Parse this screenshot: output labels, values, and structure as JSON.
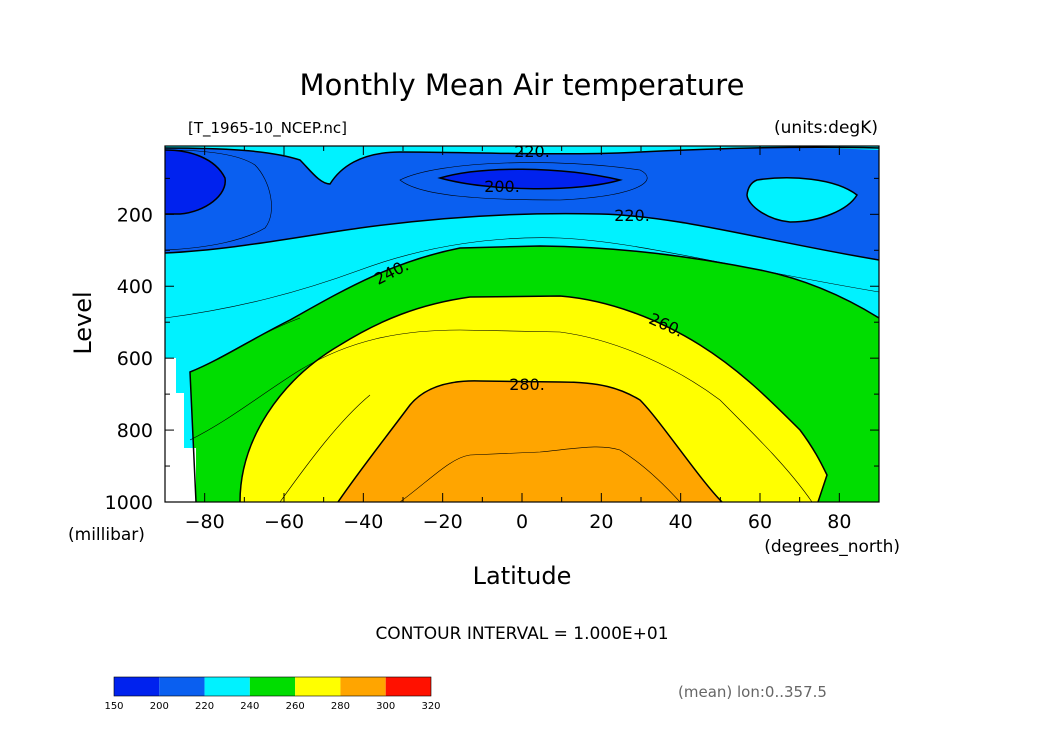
{
  "chart_data": {
    "type": "heatmap",
    "subtype": "filled-contour",
    "title": "Monthly Mean Air temperature",
    "file_label": "[T_1965-10_NCEP.nc]",
    "units_label": "(units:degK)",
    "xlabel": "Latitude",
    "x_units": "(degrees_north)",
    "ylabel": "Level",
    "y_units": "(millibar)",
    "xlim": [
      -90,
      90
    ],
    "ylim": [
      1000,
      10
    ],
    "x_ticks": [
      -80,
      -60,
      -40,
      -20,
      0,
      20,
      40,
      60,
      80
    ],
    "x_tick_labels": [
      "−80",
      "−60",
      "−40",
      "−20",
      "0",
      "20",
      "40",
      "60",
      "80"
    ],
    "y_ticks": [
      200,
      400,
      600,
      800,
      1000
    ],
    "y_tick_labels": [
      "200",
      "400",
      "600",
      "800",
      "1000"
    ],
    "contour_labels": [
      "200.",
      "220.",
      "220.",
      "240.",
      "260.",
      "280."
    ],
    "contour_interval_text": "CONTOUR INTERVAL = 1.000E+01",
    "footnote": "(mean) lon:0..357.5",
    "colorbar": {
      "levels": [
        150,
        200,
        220,
        240,
        260,
        280,
        300,
        320
      ],
      "labels": [
        "150",
        "200",
        "220",
        "240",
        "260",
        "280",
        "300",
        "320"
      ],
      "colors": [
        "#0022ee",
        "#0a5ff0",
        "#00f2ff",
        "#00dd00",
        "#ffff00",
        "#ffa500",
        "#ff1100"
      ]
    },
    "bands": [
      {
        "range": "200-220",
        "color": "#0a5ff0"
      },
      {
        "range": "220-240",
        "color": "#00f2ff"
      },
      {
        "range": "240-260",
        "color": "#00dd00"
      },
      {
        "range": "260-280",
        "color": "#ffff00"
      },
      {
        "range": "280-300",
        "color": "#ffa500"
      },
      {
        "range": "<200",
        "color": "#0022ee"
      }
    ],
    "missing_color": "#ffffff",
    "grid": false
  }
}
